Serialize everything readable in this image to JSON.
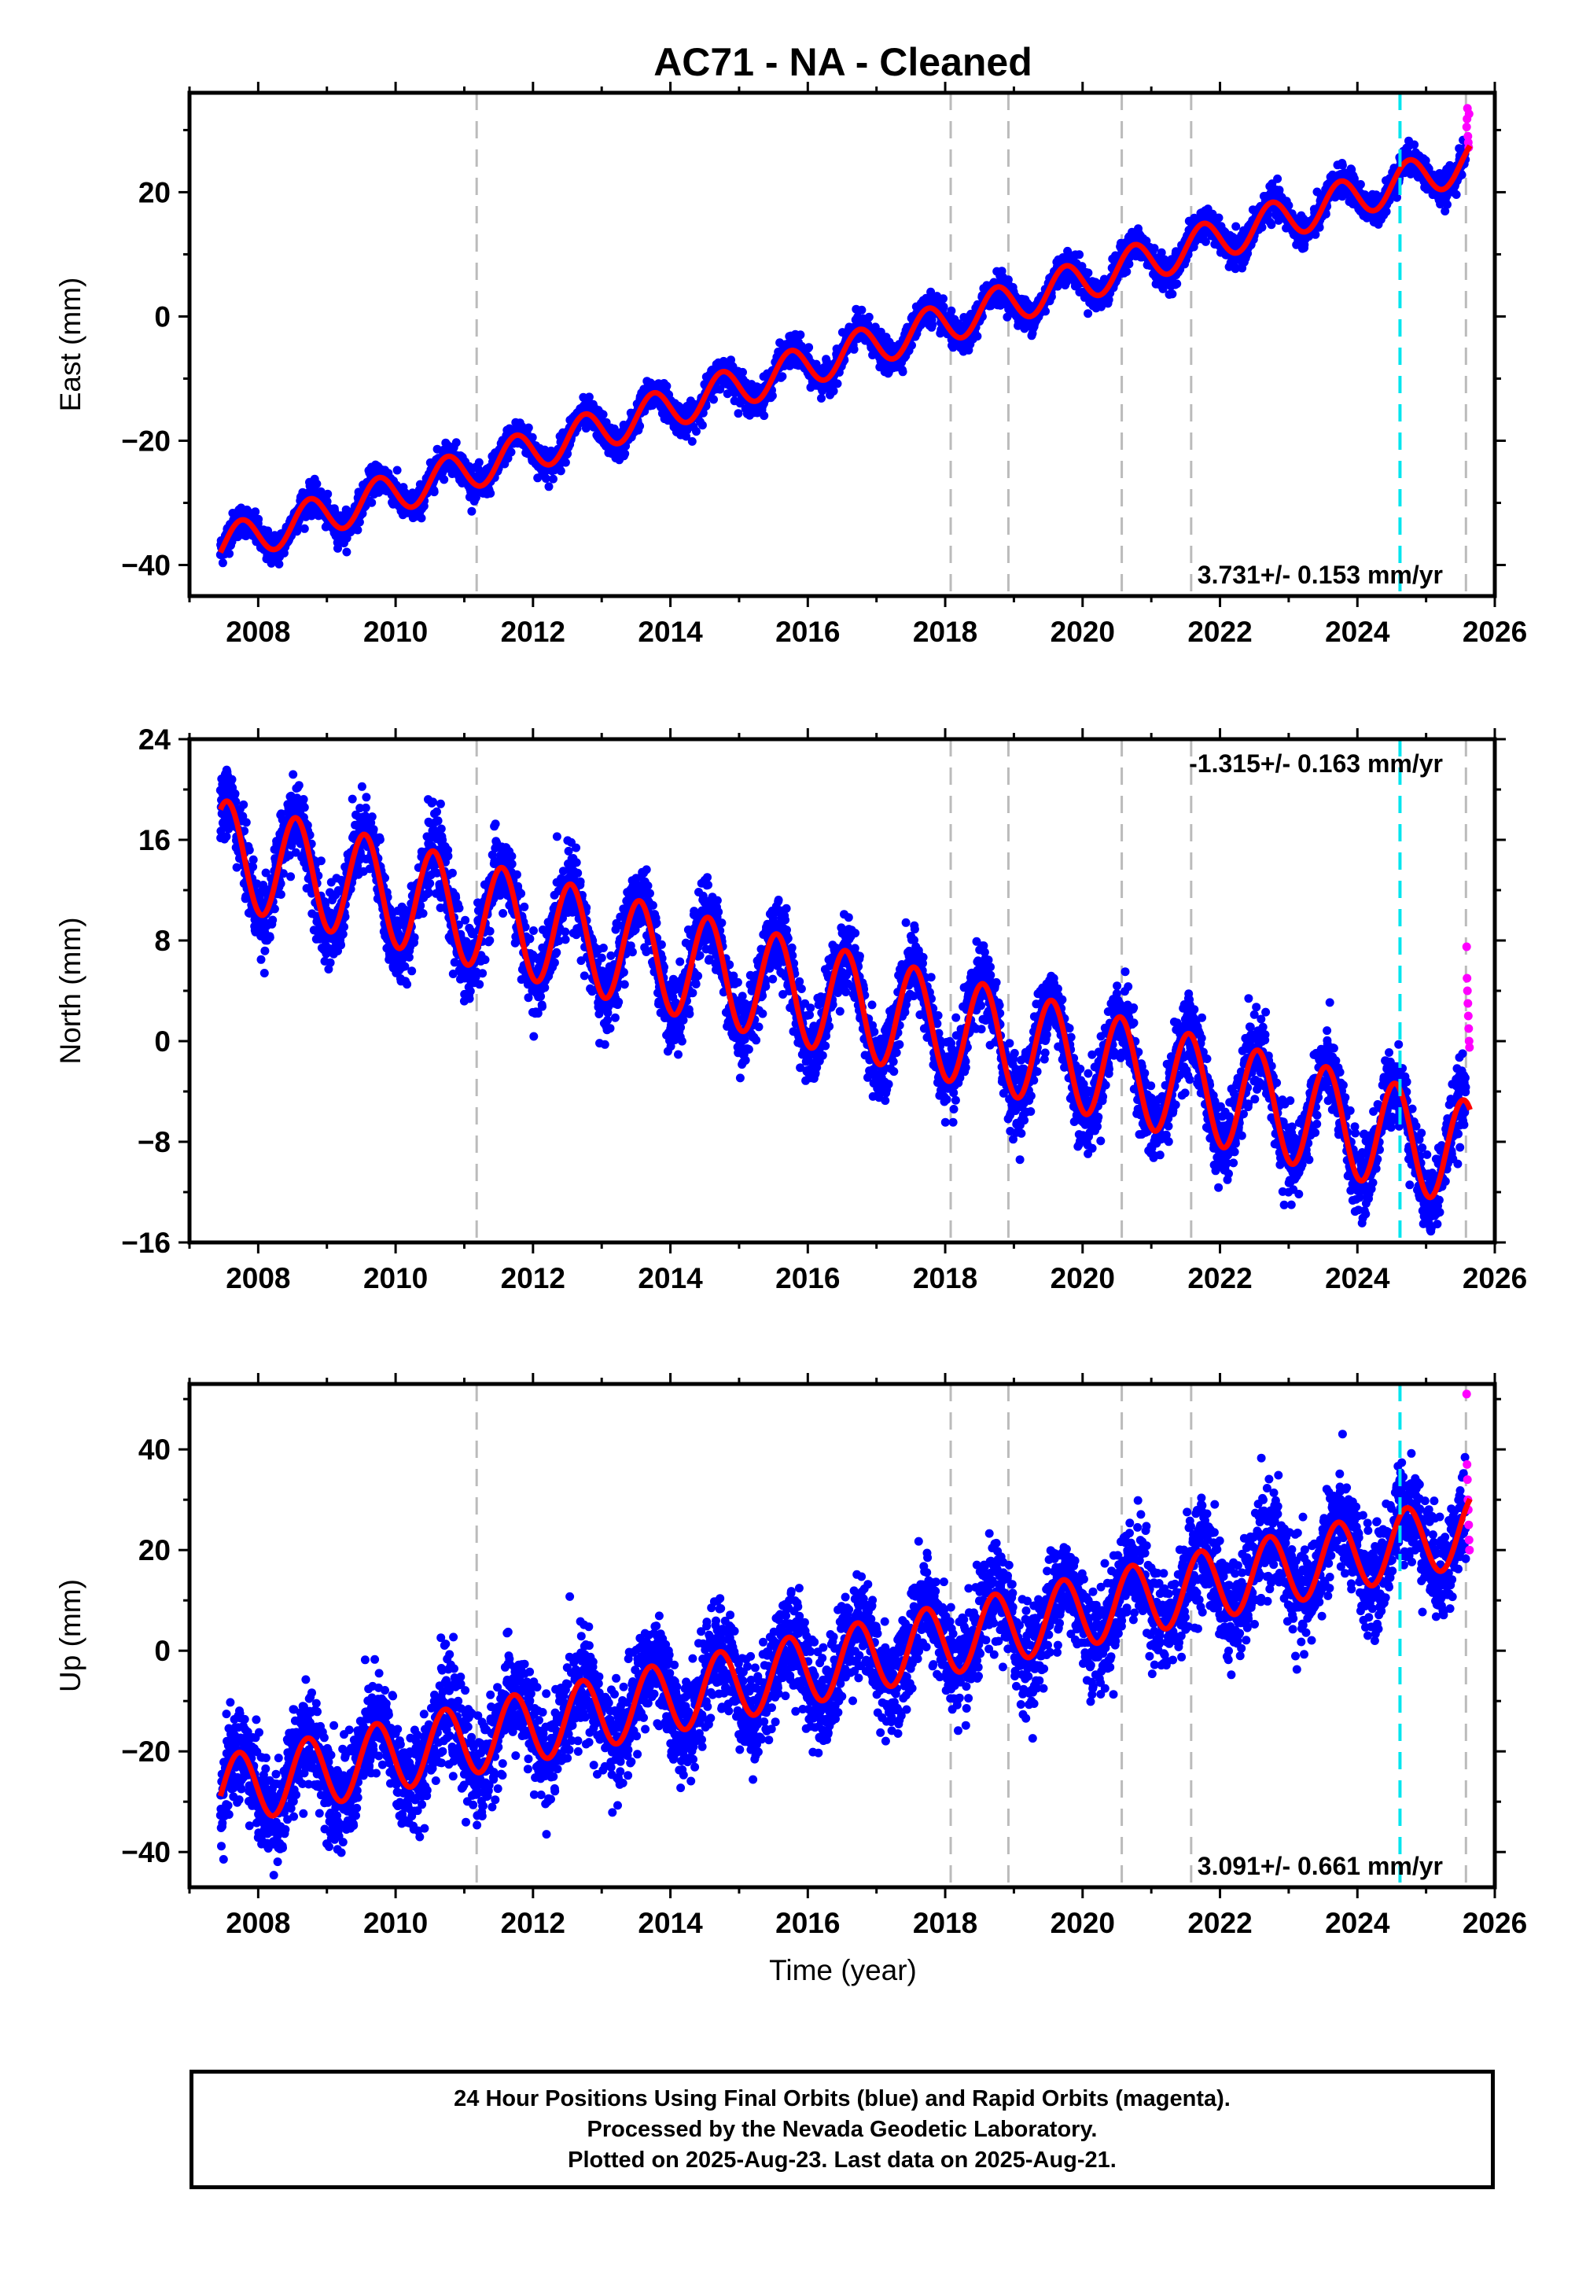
{
  "title": "AC71  - NA - Cleaned",
  "xlabel": "Time (year)",
  "footer": [
    "24 Hour Positions Using Final Orbits (blue) and Rapid Orbits (magenta).",
    "Processed by the Nevada Geodetic Laboratory.",
    "Plotted on 2025-Aug-23. Last data on 2025-Aug-21."
  ],
  "colors": {
    "final_orbits": "#0000ff",
    "rapid_orbits": "#ff00ff",
    "model_fit": "#ff0000",
    "equipment_change": "#bbbbbb",
    "earthquake": "#00e5ee"
  },
  "chart_data": [
    {
      "type": "scatter",
      "panel": "east",
      "ylabel": "East (mm)",
      "rate_label": "3.731+/- 0.153 mm/yr",
      "rate_position": "bottom-right",
      "xlim": [
        2007.0,
        2026.0
      ],
      "ylim": [
        -45,
        36
      ],
      "xticks": [
        2008,
        2010,
        2012,
        2014,
        2016,
        2018,
        2020,
        2022,
        2024,
        2026
      ],
      "yticks": [
        -40,
        -20,
        0,
        20
      ],
      "data_start": 2007.45,
      "data_end": 2025.64,
      "trend": {
        "y_at_start": -37.0,
        "y_at_end": 25.0
      },
      "seasonal_amplitude": 3.2,
      "seasonal_phase_peak": 0.75,
      "scatter_sigma": 1.2,
      "rapid_points": [
        30.5,
        31.8,
        33.5,
        29.0,
        28.0,
        27.2,
        32.6
      ],
      "equipment_lines": [
        2011.18,
        2018.08,
        2018.92,
        2020.57,
        2021.58,
        2025.58
      ],
      "earthquake_lines": [
        2024.62
      ]
    },
    {
      "type": "scatter",
      "panel": "north",
      "ylabel": "North (mm)",
      "rate_label": "-1.315+/- 0.163 mm/yr",
      "rate_position": "top-right",
      "xlim": [
        2007.0,
        2026.0
      ],
      "ylim": [
        -16,
        24
      ],
      "xticks": [
        2008,
        2010,
        2012,
        2014,
        2016,
        2018,
        2020,
        2022,
        2024,
        2026
      ],
      "yticks": [
        -16,
        -8,
        0,
        8,
        16,
        24
      ],
      "data_start": 2007.45,
      "data_end": 2025.64,
      "trend": {
        "y_at_start": 15.0,
        "y_at_end": -9.0
      },
      "seasonal_amplitude": 4.2,
      "seasonal_phase_peak": 0.55,
      "scatter_sigma": 1.5,
      "rapid_points": [
        7.5,
        5.0,
        4.0,
        3.0,
        2.0,
        1.0,
        0.0,
        -0.5
      ],
      "equipment_lines": [
        2011.18,
        2018.08,
        2018.92,
        2020.57,
        2021.58,
        2025.58
      ],
      "earthquake_lines": [
        2024.62
      ]
    },
    {
      "type": "scatter",
      "panel": "up",
      "ylabel": "Up (mm)",
      "rate_label": "3.091+/- 0.661 mm/yr",
      "rate_position": "bottom-right",
      "xlim": [
        2007.0,
        2026.0
      ],
      "ylim": [
        -47,
        53
      ],
      "xticks": [
        2008,
        2010,
        2012,
        2014,
        2016,
        2018,
        2020,
        2022,
        2024,
        2026
      ],
      "yticks": [
        -40,
        -20,
        0,
        20,
        40
      ],
      "data_start": 2007.45,
      "data_end": 2025.64,
      "trend": {
        "y_at_start": -28.0,
        "y_at_end": 24.0
      },
      "seasonal_amplitude": 7.0,
      "seasonal_phase_peak": 0.72,
      "scatter_sigma": 5.0,
      "rapid_points": [
        51.0,
        37.0,
        34.0,
        30.0,
        28.0,
        25.0,
        22.0,
        20.0
      ],
      "equipment_lines": [
        2011.18,
        2018.08,
        2018.92,
        2020.57,
        2021.58,
        2025.58
      ],
      "earthquake_lines": [
        2024.62
      ]
    }
  ]
}
